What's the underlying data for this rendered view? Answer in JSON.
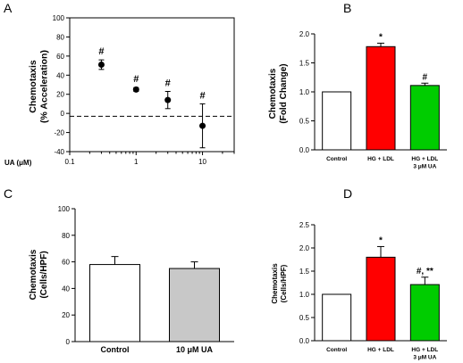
{
  "chart_data": [
    {
      "panel": "A",
      "type": "scatter",
      "ylabel_lines": [
        "Chemotaxis",
        "(% Acceleration)"
      ],
      "xlabel": "UA (μM)",
      "x_scale": "log",
      "xlim": [
        0.1,
        30
      ],
      "ylim": [
        -40,
        100
      ],
      "yticks": [
        -40,
        -20,
        0,
        20,
        40,
        60,
        80,
        100
      ],
      "xticks": [
        0.1,
        1,
        10
      ],
      "xtick_labels": [
        "0.1",
        "1",
        "10"
      ],
      "reference_line": -3,
      "points": [
        {
          "x": 0.3,
          "y": 51,
          "err": 5,
          "annotation": "#"
        },
        {
          "x": 1,
          "y": 25,
          "err": 2,
          "annotation": "#"
        },
        {
          "x": 3,
          "y": 14,
          "err": 9,
          "annotation": "#"
        },
        {
          "x": 10,
          "y": -13,
          "err": 23,
          "annotation": "#"
        }
      ]
    },
    {
      "panel": "B",
      "type": "bar",
      "ylabel_lines": [
        "Chemotaxis",
        "(Fold Change)"
      ],
      "ylim": [
        0,
        2.0
      ],
      "yticks": [
        0.0,
        0.5,
        1.0,
        1.5,
        2.0
      ],
      "ytick_labels": [
        "0.0",
        "0.5",
        "1.0",
        "1.5",
        "2.0"
      ],
      "bars": [
        {
          "label_lines": [
            "Control"
          ],
          "value": 1.0,
          "err": 0,
          "color": "#ffffff",
          "annotation": ""
        },
        {
          "label_lines": [
            "HG + LDL"
          ],
          "value": 1.78,
          "err": 0.06,
          "color": "#ff0000",
          "annotation": "*"
        },
        {
          "label_lines": [
            "HG + LDL",
            "3 μM UA"
          ],
          "value": 1.11,
          "err": 0.04,
          "color": "#00cc00",
          "annotation": "#"
        }
      ]
    },
    {
      "panel": "C",
      "type": "bar",
      "ylabel_lines": [
        "Chemotaxis",
        "(Cells/HPF)"
      ],
      "ylim": [
        0,
        100
      ],
      "yticks": [
        0,
        20,
        40,
        60,
        80,
        100
      ],
      "ytick_labels": [
        "0",
        "20",
        "40",
        "60",
        "80",
        "100"
      ],
      "bars": [
        {
          "label_lines": [
            "Control"
          ],
          "value": 58,
          "err": 6,
          "color": "#ffffff",
          "annotation": ""
        },
        {
          "label_lines": [
            "10 μM UA"
          ],
          "value": 55,
          "err": 5,
          "color": "#c8c8c8",
          "annotation": ""
        }
      ]
    },
    {
      "panel": "D",
      "type": "bar",
      "ylabel_lines": [
        "Chemotaxis",
        "(Cells/HPF)"
      ],
      "ylim": [
        0,
        2.5
      ],
      "yticks": [
        0.0,
        0.5,
        1.0,
        1.5,
        2.0,
        2.5
      ],
      "ytick_labels": [
        "0.0",
        "0.5",
        "1.0",
        "1.5",
        "2.0",
        "2.5"
      ],
      "bars": [
        {
          "label_lines": [
            "Control"
          ],
          "value": 1.0,
          "err": 0,
          "color": "#ffffff",
          "annotation": ""
        },
        {
          "label_lines": [
            "HG + LDL"
          ],
          "value": 1.8,
          "err": 0.23,
          "color": "#ff0000",
          "annotation": "*"
        },
        {
          "label_lines": [
            "HG + LDL",
            "3 μM UA"
          ],
          "value": 1.21,
          "err": 0.16,
          "color": "#00cc00",
          "annotation": "#, **"
        }
      ]
    }
  ]
}
